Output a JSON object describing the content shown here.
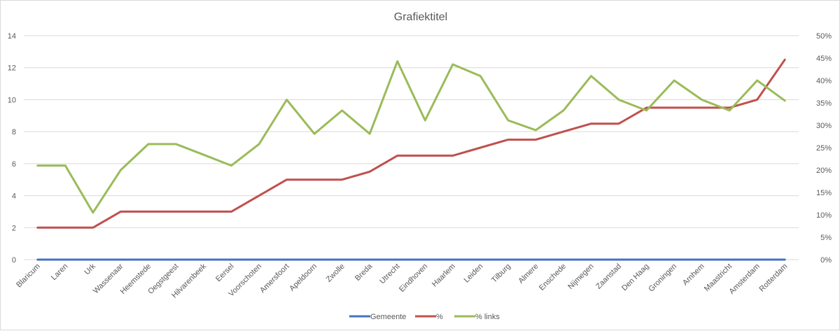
{
  "chart_data": {
    "type": "line",
    "title": "Grafiektitel",
    "categories": [
      "Blaricum",
      "Laren",
      "Urk",
      "Wassenaar",
      "Heemstede",
      "Oegstgeest",
      "Hilvarenbeek",
      "Eersel",
      "Voorschoten",
      "Amersfoort",
      "Apeldoorn",
      "Zwolle",
      "Breda",
      "Utrecht",
      "Eindhoven",
      "Haarlem",
      "Leiden",
      "Tilburg",
      "Almere",
      "Enschede",
      "Nijmegen",
      "Zaanstad",
      "Den Haag",
      "Groningen",
      "Arnhem",
      "Maastricht",
      "Amsterdam",
      "Rotterdam"
    ],
    "y_left": {
      "ylim": [
        0,
        14
      ],
      "ticks": [
        "0",
        "2",
        "4",
        "6",
        "8",
        "10",
        "12",
        "14"
      ]
    },
    "y_right": {
      "ylim": [
        0,
        0.5
      ],
      "ticks": [
        "0%",
        "5%",
        "10%",
        "15%",
        "20%",
        "25%",
        "30%",
        "35%",
        "40%",
        "45%",
        "50%"
      ]
    },
    "grid": true,
    "legend_position": "bottom",
    "series": [
      {
        "name": "Gemeente",
        "axis": "left",
        "color": "#4472c4",
        "values": [
          0,
          0,
          0,
          0,
          0,
          0,
          0,
          0,
          0,
          0,
          0,
          0,
          0,
          0,
          0,
          0,
          0,
          0,
          0,
          0,
          0,
          0,
          0,
          0,
          0,
          0,
          0,
          0
        ]
      },
      {
        "name": "%",
        "axis": "left",
        "color": "#c0504d",
        "values": [
          2,
          2,
          2,
          3,
          3,
          3,
          3,
          3,
          4,
          5,
          5,
          5,
          5.5,
          6.5,
          6.5,
          6.5,
          7,
          7.5,
          7.5,
          8,
          8.5,
          8.5,
          9.5,
          9.5,
          9.5,
          9.5,
          10,
          12.5
        ]
      },
      {
        "name": "% links",
        "axis": "right",
        "color": "#9bbb59",
        "values": [
          0.21,
          0.21,
          0.105,
          0.2,
          0.258,
          0.258,
          0.234,
          0.21,
          0.258,
          0.357,
          0.281,
          0.333,
          0.281,
          0.443,
          0.311,
          0.436,
          0.41,
          0.311,
          0.289,
          0.333,
          0.41,
          0.357,
          0.333,
          0.4,
          0.357,
          0.333,
          0.4,
          0.355
        ]
      }
    ]
  }
}
